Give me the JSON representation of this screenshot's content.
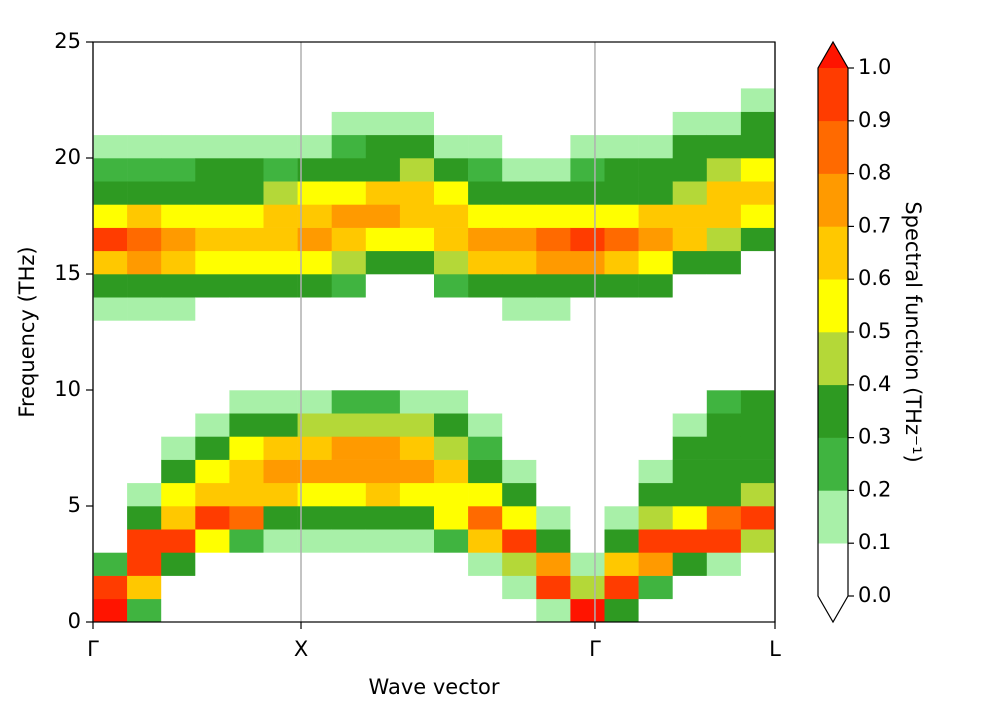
{
  "chart_data": {
    "type": "heatmap",
    "xlabel": "Wave vector",
    "ylabel": "Frequency (THz)",
    "xlim": [
      0,
      1
    ],
    "ylim": [
      0,
      25
    ],
    "xticks": [
      {
        "value": 0,
        "label": "Γ"
      },
      {
        "value": 0.305,
        "label": "X"
      },
      {
        "value": 0.736,
        "label": "Γ"
      },
      {
        "value": 1,
        "label": "L"
      }
    ],
    "yticks": [
      0,
      5,
      10,
      15,
      20,
      25
    ],
    "xgrid": true,
    "grid_color": "#b0b0b0",
    "xbins": [
      0,
      0.05,
      0.1,
      0.15,
      0.2,
      0.25,
      0.3,
      0.35,
      0.4,
      0.45,
      0.5,
      0.55,
      0.6,
      0.65,
      0.7,
      0.75,
      0.8,
      0.85,
      0.9,
      0.95,
      1
    ],
    "ybins": [
      0,
      1,
      2,
      3,
      4,
      5,
      6,
      7,
      8,
      9,
      10,
      11,
      12,
      13,
      14,
      15,
      16,
      17,
      18,
      19,
      20,
      21,
      22,
      23
    ],
    "values": [
      [
        1.0,
        0.9,
        0.2,
        0,
        0,
        0,
        0,
        0,
        0,
        0,
        0,
        0,
        0,
        0.1,
        0.3,
        0.6,
        0.95,
        0.5,
        0.3,
        0.2,
        0.1,
        0,
        0
      ],
      [
        0.2,
        0.6,
        0.9,
        0.95,
        0.3,
        0.15,
        0,
        0,
        0,
        0,
        0,
        0,
        0,
        0.1,
        0.3,
        0.7,
        0.85,
        0.6,
        0.35,
        0.2,
        0.1,
        0,
        0
      ],
      [
        0,
        0,
        0.3,
        0.9,
        0.6,
        0.5,
        0.3,
        0.15,
        0,
        0,
        0,
        0,
        0,
        0.1,
        0.35,
        0.6,
        0.75,
        0.55,
        0.35,
        0.2,
        0.1,
        0,
        0
      ],
      [
        0,
        0,
        0,
        0.5,
        0.95,
        0.6,
        0.5,
        0.3,
        0.15,
        0,
        0,
        0,
        0,
        0,
        0.3,
        0.55,
        0.6,
        0.5,
        0.3,
        0.3,
        0.15,
        0,
        0
      ],
      [
        0,
        0,
        0,
        0.2,
        0.8,
        0.6,
        0.65,
        0.5,
        0.3,
        0.15,
        0,
        0,
        0,
        0,
        0.3,
        0.5,
        0.6,
        0.55,
        0.35,
        0.3,
        0.15,
        0,
        0
      ],
      [
        0,
        0,
        0,
        0.15,
        0.3,
        0.6,
        0.7,
        0.6,
        0.35,
        0.15,
        0,
        0,
        0,
        0,
        0.3,
        0.55,
        0.65,
        0.6,
        0.4,
        0.25,
        0.15,
        0,
        0
      ],
      [
        0,
        0,
        0,
        0.15,
        0.3,
        0.55,
        0.7,
        0.65,
        0.4,
        0.15,
        0,
        0,
        0,
        0,
        0.3,
        0.5,
        0.7,
        0.65,
        0.5,
        0.3,
        0.15,
        0,
        0
      ],
      [
        0,
        0,
        0,
        0.15,
        0.3,
        0.55,
        0.7,
        0.75,
        0.45,
        0.2,
        0,
        0,
        0,
        0,
        0.2,
        0.4,
        0.65,
        0.75,
        0.55,
        0.3,
        0.2,
        0.1,
        0
      ],
      [
        0,
        0,
        0,
        0.15,
        0.3,
        0.6,
        0.7,
        0.7,
        0.4,
        0.2,
        0,
        0,
        0,
        0,
        0,
        0.3,
        0.55,
        0.7,
        0.6,
        0.35,
        0.3,
        0.15,
        0
      ],
      [
        0,
        0,
        0,
        0.15,
        0.35,
        0.55,
        0.7,
        0.65,
        0.4,
        0.15,
        0,
        0,
        0,
        0,
        0,
        0.3,
        0.5,
        0.65,
        0.6,
        0.4,
        0.3,
        0.15,
        0
      ],
      [
        0,
        0,
        0,
        0.2,
        0.5,
        0.55,
        0.6,
        0.45,
        0.3,
        0.15,
        0,
        0,
        0,
        0,
        0.2,
        0.4,
        0.6,
        0.6,
        0.5,
        0.3,
        0.15,
        0,
        0
      ],
      [
        0,
        0,
        0.15,
        0.6,
        0.8,
        0.5,
        0.35,
        0.2,
        0.1,
        0,
        0,
        0,
        0,
        0,
        0.3,
        0.6,
        0.7,
        0.55,
        0.35,
        0.2,
        0.1,
        0,
        0
      ],
      [
        0,
        0.15,
        0.4,
        0.95,
        0.5,
        0.3,
        0.15,
        0,
        0,
        0,
        0,
        0,
        0,
        0.1,
        0.3,
        0.65,
        0.75,
        0.5,
        0.3,
        0.15,
        0,
        0,
        0
      ],
      [
        0.15,
        0.9,
        0.7,
        0.3,
        0.15,
        0,
        0,
        0,
        0,
        0,
        0,
        0,
        0,
        0.1,
        0.3,
        0.7,
        0.85,
        0.5,
        0.3,
        0.15,
        0,
        0,
        0
      ],
      [
        1.0,
        0.4,
        0.1,
        0,
        0,
        0,
        0,
        0,
        0,
        0,
        0,
        0,
        0,
        0,
        0.3,
        0.7,
        0.95,
        0.5,
        0.3,
        0.2,
        0.1,
        0,
        0
      ],
      [
        0.3,
        0.95,
        0.6,
        0.3,
        0.15,
        0,
        0,
        0,
        0,
        0,
        0,
        0,
        0,
        0,
        0.3,
        0.65,
        0.8,
        0.55,
        0.35,
        0.3,
        0.15,
        0,
        0
      ],
      [
        0,
        0.2,
        0.7,
        0.9,
        0.4,
        0.3,
        0.15,
        0,
        0,
        0,
        0,
        0,
        0,
        0,
        0.3,
        0.55,
        0.7,
        0.6,
        0.35,
        0.3,
        0.15,
        0,
        0
      ],
      [
        0,
        0,
        0.3,
        0.95,
        0.5,
        0.35,
        0.3,
        0.3,
        0.15,
        0,
        0,
        0,
        0,
        0,
        0,
        0.35,
        0.6,
        0.65,
        0.45,
        0.3,
        0.3,
        0.15,
        0
      ],
      [
        0,
        0,
        0.15,
        0.9,
        0.8,
        0.35,
        0.3,
        0.3,
        0.3,
        0.2,
        0,
        0,
        0,
        0,
        0,
        0.3,
        0.45,
        0.6,
        0.65,
        0.4,
        0.3,
        0.15,
        0
      ],
      [
        0,
        0,
        0,
        0.4,
        0.95,
        0.4,
        0.3,
        0.3,
        0.3,
        0.3,
        0,
        0,
        0,
        0,
        0,
        0,
        0.3,
        0.5,
        0.65,
        0.5,
        0.35,
        0.3,
        0.15
      ]
    ],
    "colorbar": {
      "label": "Spectral function (THz⁻¹)",
      "levels": [
        0,
        0.1,
        0.2,
        0.3,
        0.4,
        0.5,
        0.6,
        0.7,
        0.8,
        0.9,
        1.0
      ],
      "colors": [
        "#ffffff",
        "#a8f0a8",
        "#40b440",
        "#2e9a22",
        "#b4d838",
        "#ffff00",
        "#ffc800",
        "#ff9a00",
        "#ff6a00",
        "#ff3c00"
      ],
      "under_color": "#ffffff",
      "over_color": "#ff1400",
      "ticks": [
        {
          "value": 0,
          "label": "0.0"
        },
        0.1,
        0.2,
        0.3,
        0.4,
        0.5,
        0.6,
        0.7,
        0.8,
        0.9,
        {
          "value": 1,
          "label": "1.0"
        }
      ]
    }
  }
}
